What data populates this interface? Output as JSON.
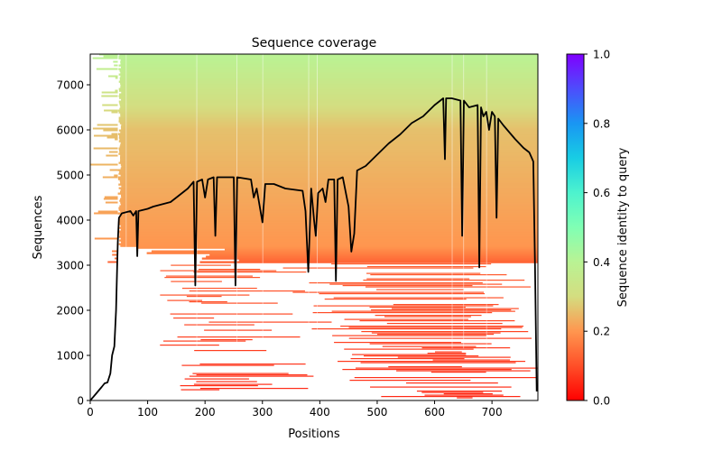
{
  "chart_data": {
    "type": "heatmap",
    "title": "Sequence coverage",
    "xlabel": "Positions",
    "ylabel": "Sequences",
    "xlim": [
      0,
      780
    ],
    "ylim": [
      0,
      7680
    ],
    "xticks": [
      0,
      100,
      200,
      300,
      400,
      500,
      600,
      700
    ],
    "yticks": [
      0,
      1000,
      2000,
      3000,
      4000,
      5000,
      6000,
      7000
    ],
    "grid": false,
    "colorbar": {
      "label": "Sequence identity to query",
      "colormap": "rainbow_r",
      "range": [
        0.0,
        1.0
      ],
      "ticks": [
        "0.0",
        "0.2",
        "0.4",
        "0.6",
        "0.8",
        "1.0"
      ],
      "stops": [
        {
          "value": 0.0,
          "color": "#ff0000"
        },
        {
          "value": 0.1,
          "color": "#ff4f28"
        },
        {
          "value": 0.2,
          "color": "#ff964f"
        },
        {
          "value": 0.3,
          "color": "#d4dd80"
        },
        {
          "value": 0.4,
          "color": "#b9f394"
        },
        {
          "value": 0.5,
          "color": "#80ffb4"
        },
        {
          "value": 0.6,
          "color": "#4df3ce"
        },
        {
          "value": 0.7,
          "color": "#18cde4"
        },
        {
          "value": 0.8,
          "color": "#1996f3"
        },
        {
          "value": 0.9,
          "color": "#4d4dfc"
        },
        {
          "value": 1.0,
          "color": "#8000ff"
        }
      ]
    },
    "identity_bands": [
      {
        "seq_from": 0,
        "seq_to": 3000,
        "identity_from": 0.05,
        "identity_to": 0.12,
        "description": "sparse red fragments"
      },
      {
        "seq_from": 3000,
        "seq_to": 3400,
        "identity_from": 0.12,
        "identity_to": 0.2
      },
      {
        "seq_from": 3400,
        "seq_to": 6000,
        "identity_from": 0.2,
        "identity_to": 0.26
      },
      {
        "seq_from": 6000,
        "seq_to": 7680,
        "identity_from": 0.26,
        "identity_to": 0.4
      }
    ],
    "series": [
      {
        "name": "coverage",
        "color": "#000000",
        "x": [
          0,
          10,
          20,
          25,
          30,
          35,
          38,
          42,
          45,
          48,
          50,
          55,
          70,
          75,
          80,
          82,
          84,
          100,
          110,
          140,
          150,
          170,
          180,
          183,
          186,
          195,
          200,
          205,
          215,
          218,
          221,
          250,
          253,
          256,
          280,
          285,
          290,
          300,
          305,
          320,
          340,
          370,
          375,
          380,
          385,
          390,
          393,
          397,
          405,
          410,
          415,
          425,
          428,
          431,
          440,
          450,
          455,
          460,
          465,
          480,
          500,
          520,
          540,
          560,
          580,
          600,
          615,
          618,
          620,
          630,
          645,
          648,
          651,
          660,
          675,
          678,
          681,
          685,
          690,
          695,
          700,
          705,
          708,
          711,
          720,
          740,
          755,
          765,
          772,
          775,
          778
        ],
        "y": [
          0,
          150,
          300,
          380,
          400,
          600,
          1000,
          1200,
          2000,
          3500,
          4050,
          4150,
          4200,
          4100,
          4200,
          3200,
          4200,
          4250,
          4300,
          4400,
          4500,
          4700,
          4850,
          2550,
          4850,
          4900,
          4500,
          4900,
          4950,
          3650,
          4950,
          4950,
          2550,
          4950,
          4900,
          4500,
          4700,
          3950,
          4800,
          4800,
          4700,
          4650,
          4200,
          2850,
          4700,
          4000,
          3650,
          4600,
          4700,
          4400,
          4900,
          4900,
          2650,
          4900,
          4950,
          4300,
          3300,
          3700,
          5100,
          5200,
          5450,
          5700,
          5900,
          6150,
          6300,
          6550,
          6700,
          5350,
          6700,
          6700,
          6650,
          3650,
          6650,
          6500,
          6550,
          2950,
          6500,
          6300,
          6400,
          6000,
          6400,
          6300,
          4050,
          6250,
          6100,
          5800,
          5600,
          5500,
          5300,
          3000,
          200
        ]
      }
    ]
  }
}
